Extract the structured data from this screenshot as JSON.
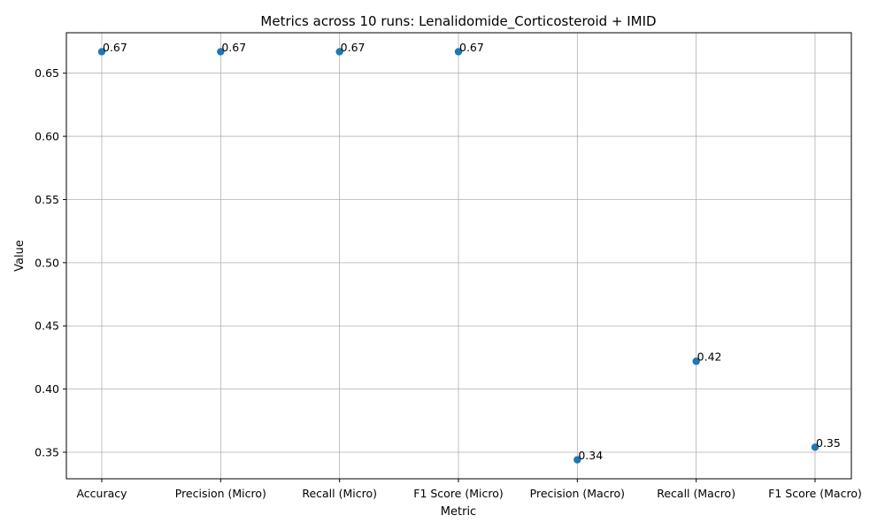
{
  "chart_data": {
    "type": "scatter",
    "title": "Metrics across 10 runs: Lenalidomide_Corticosteroid + IMID",
    "xlabel": "Metric",
    "ylabel": "Value",
    "categories": [
      "Accuracy",
      "Precision (Micro)",
      "Recall (Micro)",
      "F1 Score (Micro)",
      "Precision (Macro)",
      "Recall (Macro)",
      "F1 Score (Macro)"
    ],
    "values": [
      0.667,
      0.667,
      0.667,
      0.667,
      0.344,
      0.422,
      0.354
    ],
    "data_labels": [
      "0.67",
      "0.67",
      "0.67",
      "0.67",
      "0.34",
      "0.42",
      "0.35"
    ],
    "ylim": [
      0.329,
      0.682
    ],
    "yticks": [
      0.35,
      0.4,
      0.45,
      0.5,
      0.55,
      0.6,
      0.65
    ],
    "ytick_labels": [
      "0.35",
      "0.40",
      "0.45",
      "0.50",
      "0.55",
      "0.60",
      "0.65"
    ],
    "grid": true,
    "marker_color": "#1f77b4"
  }
}
